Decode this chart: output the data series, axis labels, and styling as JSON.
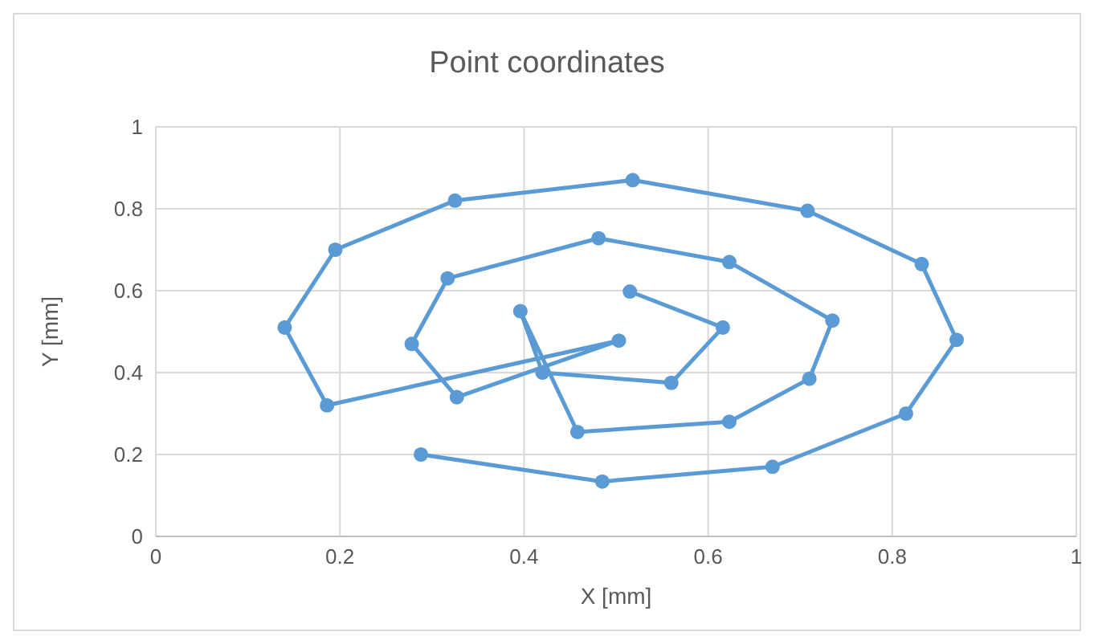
{
  "chart_data": {
    "type": "line",
    "title": "Point coordinates",
    "xlabel": "X [mm]",
    "ylabel": "Y [mm]",
    "x": [
      0.515,
      0.616,
      0.56,
      0.42,
      0.396,
      0.458,
      0.623,
      0.71,
      0.735,
      0.623,
      0.481,
      0.317,
      0.278,
      0.327,
      0.503,
      0.186,
      0.14,
      0.195,
      0.325,
      0.518,
      0.708,
      0.832,
      0.87,
      0.815,
      0.67,
      0.485,
      0.288
    ],
    "series": [
      {
        "color": "#5b9bd5",
        "values": [
          0.598,
          0.51,
          0.375,
          0.4,
          0.55,
          0.255,
          0.28,
          0.385,
          0.527,
          0.67,
          0.728,
          0.63,
          0.47,
          0.34,
          0.478,
          0.32,
          0.51,
          0.7,
          0.82,
          0.87,
          0.795,
          0.665,
          0.48,
          0.3,
          0.17,
          0.134,
          0.2
        ]
      }
    ],
    "xlim": [
      0,
      1
    ],
    "xticks": [
      0,
      0.2,
      0.4,
      0.6,
      0.8,
      1
    ],
    "ylim": [
      0,
      1
    ],
    "yticks": [
      0,
      0.2,
      0.4,
      0.6,
      0.8,
      1
    ],
    "grid": true,
    "marker": "circle",
    "line_style": "solid",
    "legend": false
  }
}
